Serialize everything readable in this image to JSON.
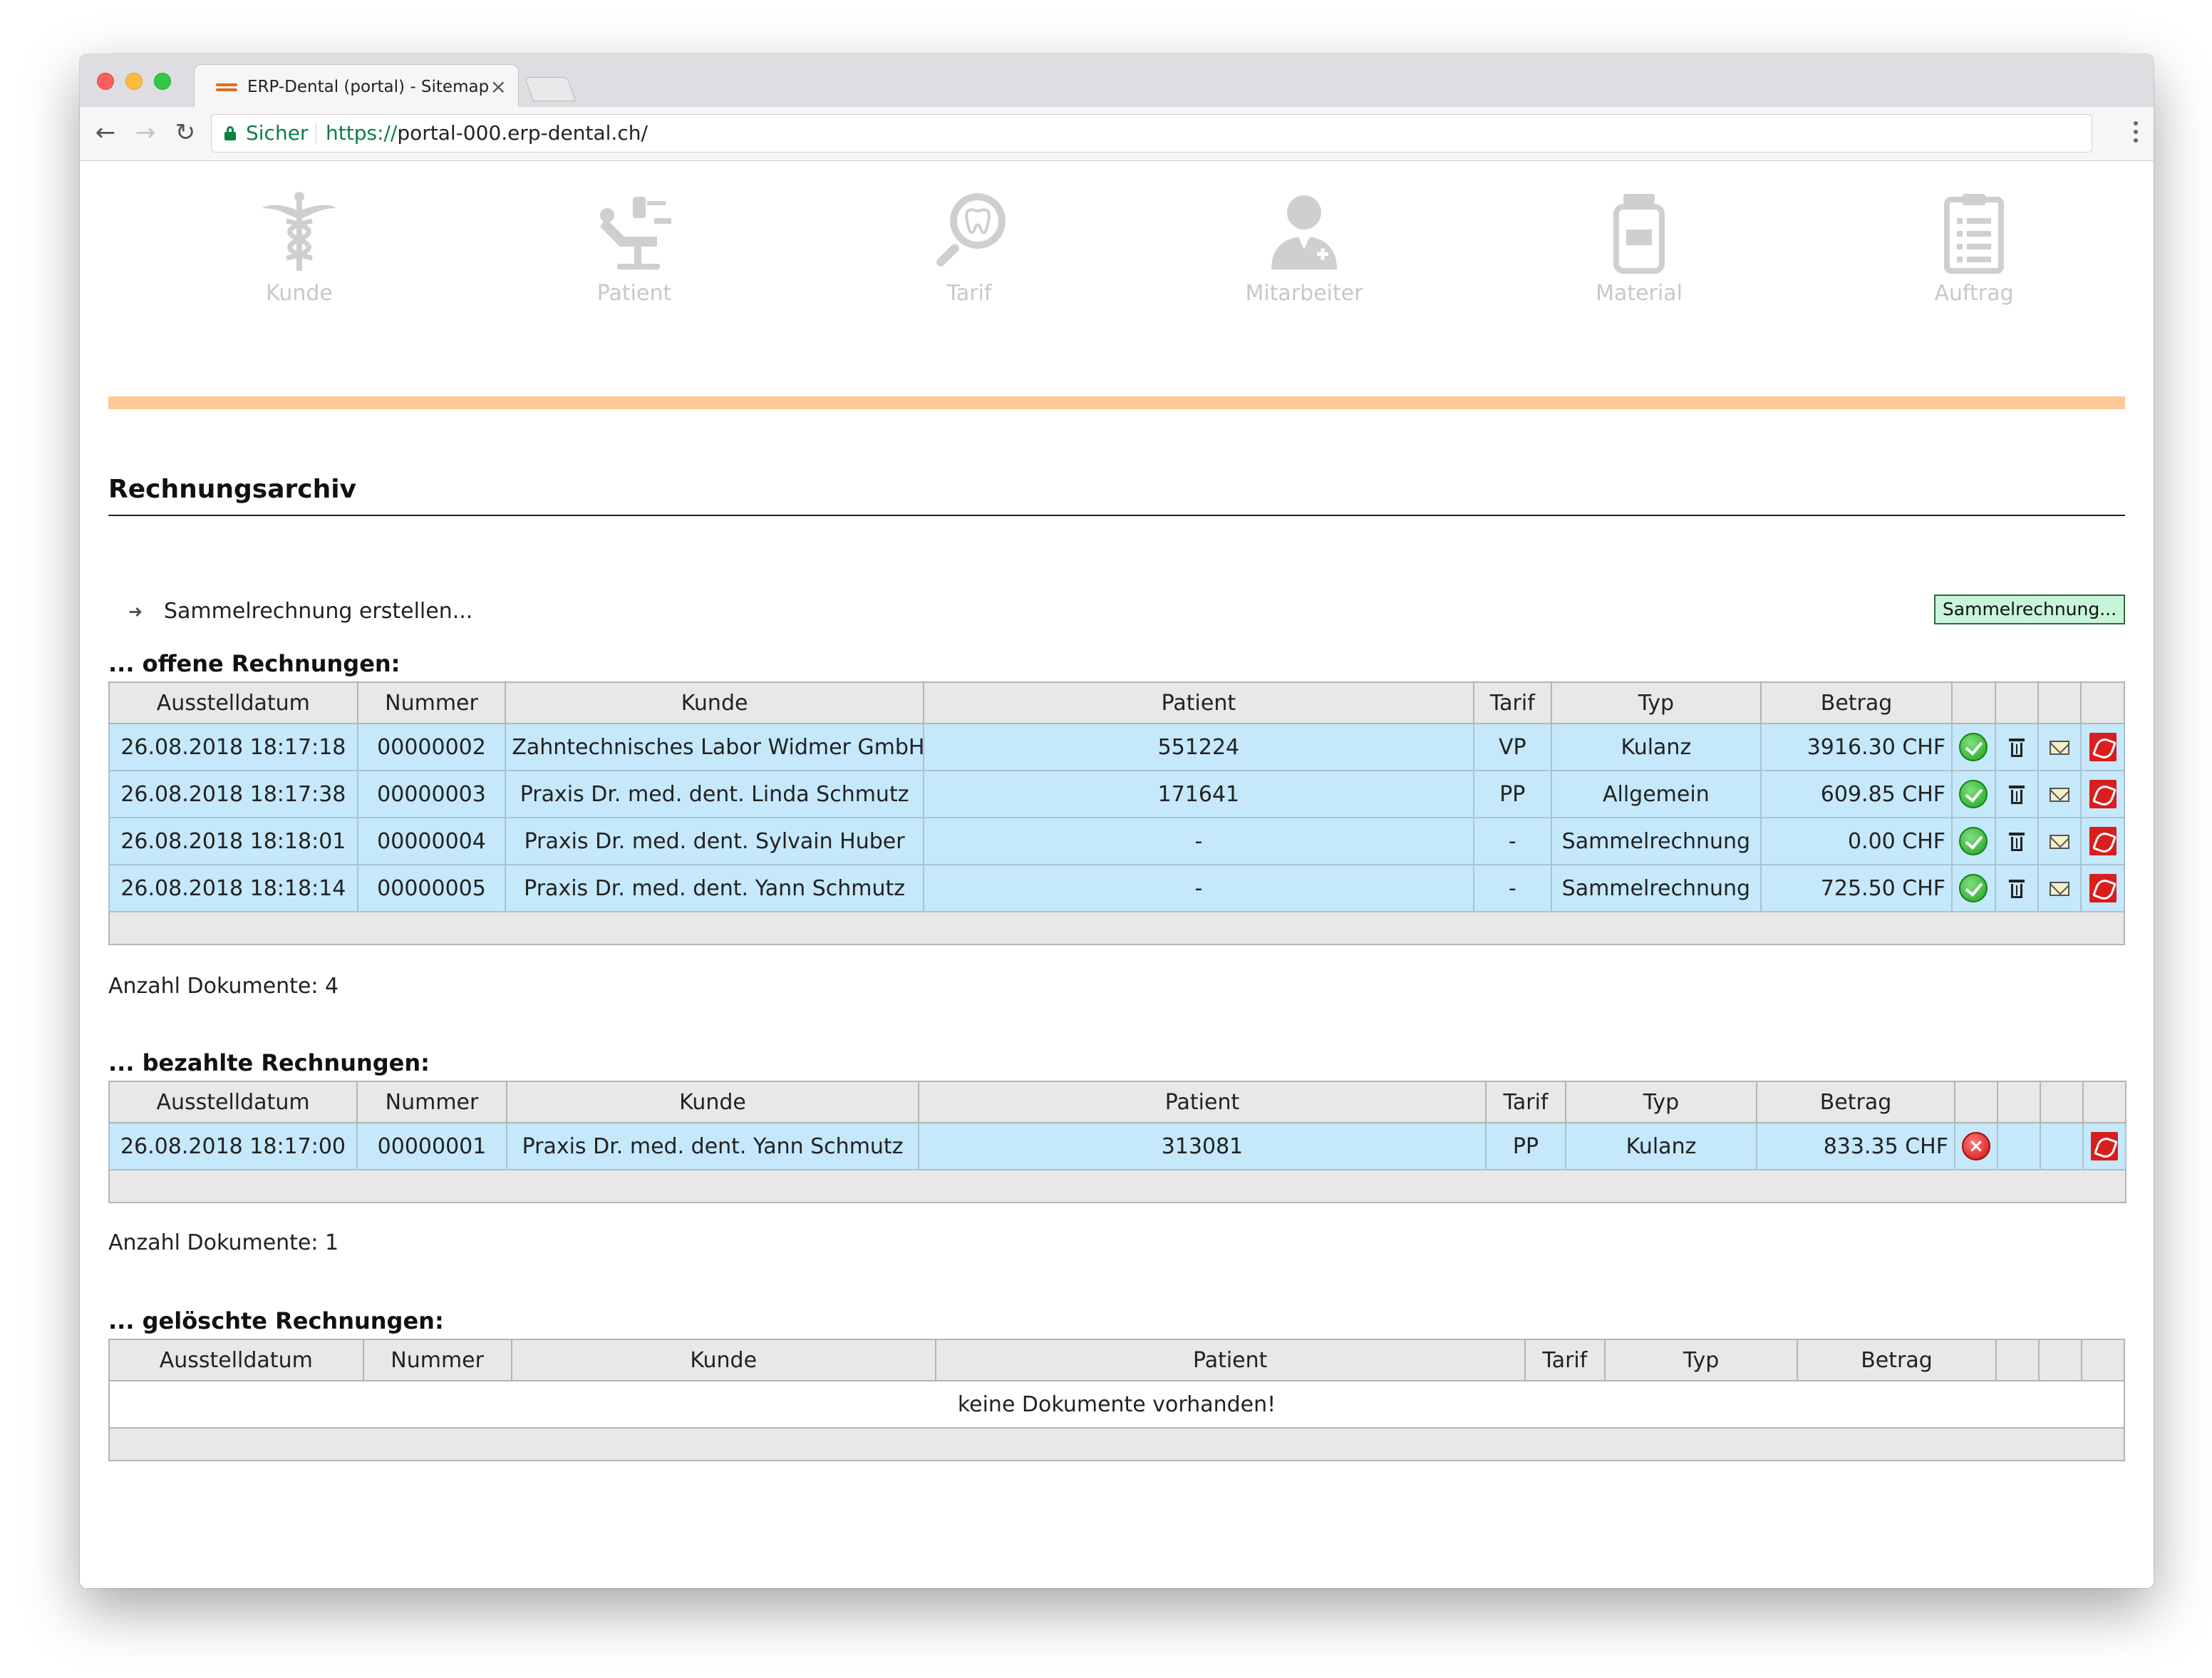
{
  "browser": {
    "tab_title": "ERP-Dental (portal) - Sitemap",
    "tab_close": "×",
    "secure_label": "Sicher",
    "url_scheme": "https://",
    "url_rest": "portal-000.erp-dental.ch/"
  },
  "nav": {
    "items": [
      {
        "label": "Kunde",
        "icon": "caduceus-icon"
      },
      {
        "label": "Patient",
        "icon": "dental-chair-icon"
      },
      {
        "label": "Tarif",
        "icon": "tooth-magnifier-icon"
      },
      {
        "label": "Mitarbeiter",
        "icon": "doctor-icon"
      },
      {
        "label": "Material",
        "icon": "jar-icon"
      },
      {
        "label": "Auftrag",
        "icon": "clipboard-icon"
      }
    ]
  },
  "page": {
    "title": "Rechnungsarchiv",
    "sammel_link": "Sammelrechnung erstellen...",
    "sammel_button": "Sammelrechnung..."
  },
  "columns": [
    "Ausstelldatum",
    "Nummer",
    "Kunde",
    "Patient",
    "Tarif",
    "Typ",
    "Betrag"
  ],
  "open": {
    "title": "... offene Rechnungen:",
    "count": "Anzahl Dokumente: 4",
    "rows": [
      {
        "date": "26.08.2018 18:17:18",
        "number": "00000002",
        "customer": "Zahntechnisches Labor Widmer GmbH",
        "patient": "551224",
        "tarif": "VP",
        "type": "Kulanz",
        "amount": "3916.30 CHF"
      },
      {
        "date": "26.08.2018 18:17:38",
        "number": "00000003",
        "customer": "Praxis Dr. med. dent. Linda Schmutz",
        "patient": "171641",
        "tarif": "PP",
        "type": "Allgemein",
        "amount": "609.85 CHF"
      },
      {
        "date": "26.08.2018 18:18:01",
        "number": "00000004",
        "customer": "Praxis Dr. med. dent. Sylvain Huber",
        "patient": "-",
        "tarif": "-",
        "type": "Sammelrechnung",
        "amount": "0.00 CHF"
      },
      {
        "date": "26.08.2018 18:18:14",
        "number": "00000005",
        "customer": "Praxis Dr. med. dent. Yann Schmutz",
        "patient": "-",
        "tarif": "-",
        "type": "Sammelrechnung",
        "amount": "725.50 CHF"
      }
    ]
  },
  "paid": {
    "title": "... bezahlte Rechnungen:",
    "count": "Anzahl Dokumente: 1",
    "rows": [
      {
        "date": "26.08.2018 18:17:00",
        "number": "00000001",
        "customer": "Praxis Dr. med. dent. Yann Schmutz",
        "patient": "313081",
        "tarif": "PP",
        "type": "Kulanz",
        "amount": "833.35 CHF"
      }
    ]
  },
  "deleted": {
    "title": "... gelöschte Rechnungen:",
    "empty": "keine Dokumente vorhanden!"
  },
  "colors": {
    "accent_bar": "#fcc996",
    "row_bg": "#c5e8fb",
    "button_bg": "#c8f5d8"
  }
}
